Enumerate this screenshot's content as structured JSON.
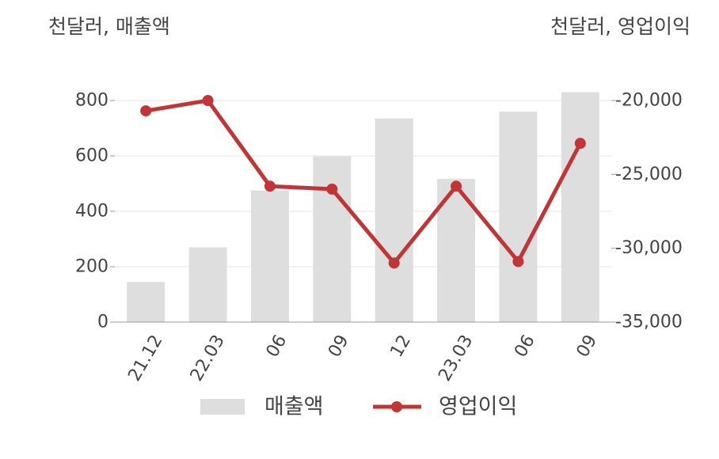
{
  "chart_data": {
    "type": "bar+line",
    "categories": [
      "21.12",
      "22.03",
      "06",
      "09",
      "12",
      "23.03",
      "06",
      "09"
    ],
    "series": [
      {
        "name": "매출액",
        "type": "bar",
        "axis": "left",
        "values": [
          145,
          270,
          475,
          598,
          735,
          517,
          760,
          830
        ]
      },
      {
        "name": "영업이익",
        "type": "line",
        "axis": "right",
        "values": [
          -20700,
          -20000,
          -25800,
          -26000,
          -31000,
          -25800,
          -30900,
          -22900
        ]
      }
    ],
    "left_axis": {
      "label": "천달러, 매출액",
      "ylim": [
        0,
        800
      ],
      "ticks": [
        "0",
        "200",
        "400",
        "600",
        "800"
      ]
    },
    "right_axis": {
      "label": "천달러, 영업이익",
      "ylim": [
        -35000,
        -20000
      ],
      "ticks": [
        "-35,000",
        "-30,000",
        "-25,000",
        "-20,000"
      ]
    },
    "grid": true,
    "legend_position": "bottom",
    "colors": {
      "bar": "#dedede",
      "line": "#c03535",
      "grid": "#e6e6e6",
      "axis": "#999999"
    }
  }
}
